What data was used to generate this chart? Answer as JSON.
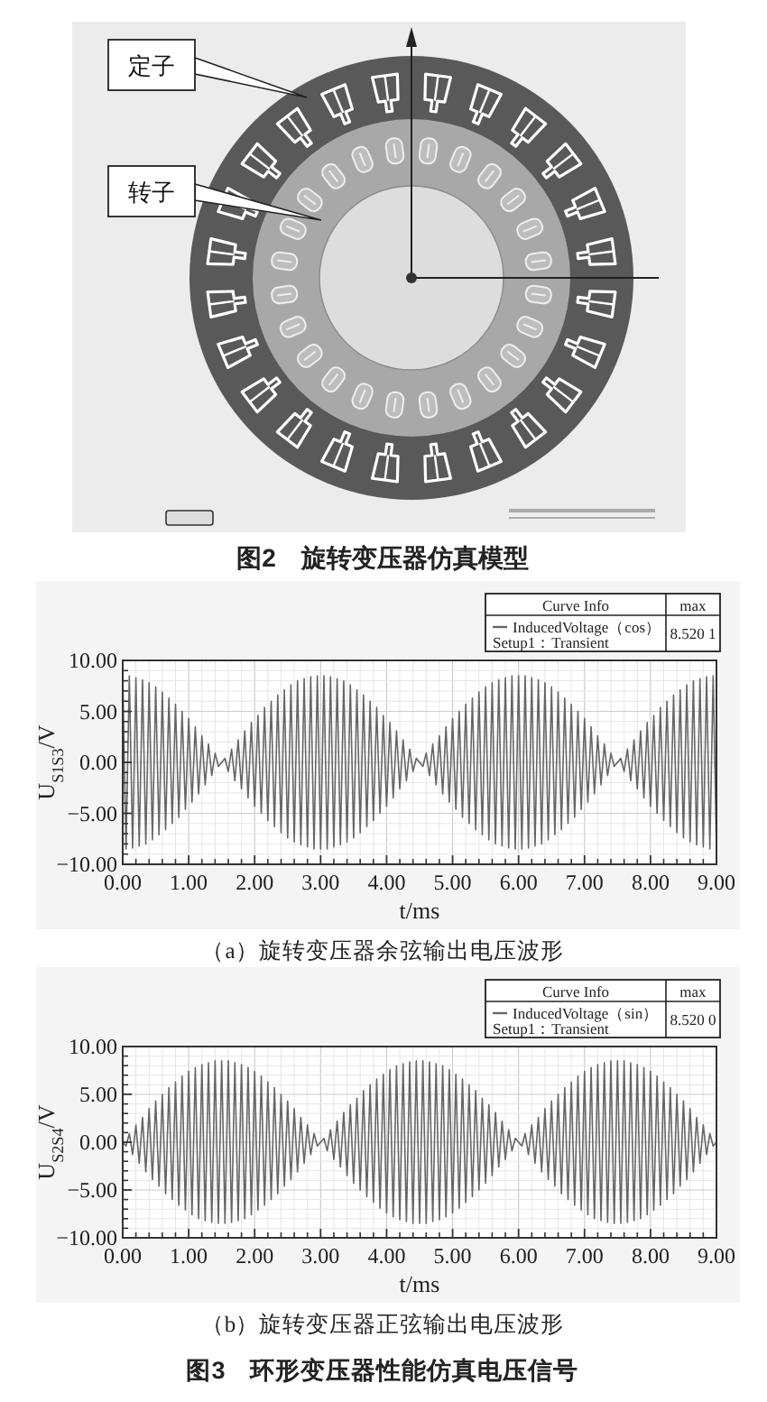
{
  "chart_data": [
    {
      "type": "other",
      "title": "图2　旋转变压器仿真模型",
      "annotations": [
        "定子",
        "转子"
      ]
    },
    {
      "type": "line",
      "title": "（a）旋转变压器余弦输出电压波形",
      "xlabel": "t/ms",
      "ylabel": "U$_{S1S3}$/V",
      "legend_title": "Curve Info",
      "annotations": [
        "Setup1：Transient",
        "max",
        "8.520 1"
      ],
      "x": [
        0,
        0.05,
        0.1,
        0.15,
        0.2,
        0.25,
        0.3,
        0.35,
        0.4,
        0.45,
        0.5,
        0.55,
        0.6,
        0.65,
        0.7,
        0.75,
        0.8,
        0.85,
        0.9,
        0.95,
        1,
        1.05,
        1.1,
        1.15,
        1.2,
        1.25,
        1.3,
        1.35,
        1.4,
        1.45,
        1.5,
        1.55,
        1.6,
        1.65,
        1.7,
        1.75,
        1.8,
        1.85,
        1.9,
        1.95,
        2,
        2.05,
        2.1,
        2.15,
        2.2,
        2.25,
        2.3,
        2.35,
        2.4,
        2.45,
        2.5,
        2.55,
        2.6,
        2.65,
        2.7,
        2.75,
        2.8,
        2.85,
        2.9,
        2.95,
        3,
        3.05,
        3.1,
        3.15,
        3.2,
        3.25,
        3.3,
        3.35,
        3.4,
        3.45,
        3.5,
        3.55,
        3.6,
        3.65,
        3.7,
        3.75,
        3.8,
        3.85,
        3.9,
        3.95,
        4,
        4.05,
        4.1,
        4.15,
        4.2,
        4.25,
        4.3,
        4.35,
        4.4,
        4.45,
        4.5,
        4.55,
        4.6,
        4.65,
        4.7,
        4.75,
        4.8,
        4.85,
        4.9,
        4.95,
        5,
        5.05,
        5.1,
        5.15,
        5.2,
        5.25,
        5.3,
        5.35,
        5.4,
        5.45,
        5.5,
        5.55,
        5.6,
        5.65,
        5.7,
        5.75,
        5.8,
        5.85,
        5.9,
        5.95,
        6,
        6.05,
        6.1,
        6.15,
        6.2,
        6.25,
        6.3,
        6.35,
        6.4,
        6.45,
        6.5,
        6.55,
        6.6,
        6.65,
        6.7,
        6.75,
        6.8,
        6.85,
        6.9,
        6.95,
        7,
        7.05,
        7.1,
        7.15,
        7.2,
        7.25,
        7.3,
        7.35,
        7.4,
        7.45,
        7.5,
        7.55,
        7.6,
        7.65,
        7.7,
        7.75,
        7.8,
        7.85,
        7.9,
        7.95,
        8,
        8.05,
        8.1,
        8.15,
        8.2,
        8.25,
        8.3,
        8.35,
        8.4,
        8.45,
        8.5,
        8.55,
        8.6,
        8.65,
        8.7,
        8.75,
        8.8,
        8.85,
        8.9,
        8.95,
        9
      ],
      "series": [
        {
          "name": "InducedVoltage（cos）",
          "color": "#666666",
          "values": [
            8.5,
            -8.5,
            8.5,
            -8.4,
            8.3,
            -8.2,
            8.1,
            -8.0,
            7.8,
            -7.6,
            7.4,
            -7.1,
            6.9,
            -6.6,
            6.3,
            -6.0,
            5.7,
            -5.4,
            5.0,
            -4.6,
            4.3,
            -3.9,
            3.5,
            -3.1,
            2.6,
            -2.2,
            1.8,
            -1.3,
            0.9,
            -0.4,
            0.0,
            0.4,
            -0.9,
            1.3,
            -1.8,
            2.2,
            -2.6,
            3.1,
            -3.5,
            3.9,
            -4.3,
            4.6,
            -5.0,
            5.4,
            -5.7,
            6.0,
            -6.3,
            6.6,
            -6.9,
            7.1,
            -7.4,
            7.6,
            -7.8,
            8.0,
            -8.1,
            8.2,
            -8.3,
            8.4,
            -8.5,
            8.5,
            -8.5,
            8.5,
            -8.5,
            8.4,
            -8.3,
            8.2,
            -8.1,
            8.0,
            -7.8,
            7.6,
            -7.4,
            7.1,
            -6.9,
            6.6,
            -6.3,
            6.0,
            -5.7,
            5.4,
            -5.0,
            4.6,
            -4.3,
            3.9,
            -3.5,
            3.1,
            -2.6,
            2.2,
            -1.8,
            1.3,
            -0.9,
            0.4,
            0.0,
            -0.4,
            0.9,
            -1.3,
            1.8,
            -2.2,
            2.6,
            -3.1,
            3.5,
            -3.9,
            4.3,
            -4.6,
            5.0,
            -5.4,
            5.7,
            -6.0,
            6.3,
            -6.6,
            6.9,
            -7.1,
            7.4,
            -7.6,
            7.8,
            -8.0,
            8.1,
            -8.2,
            8.3,
            -8.4,
            8.5,
            -8.5,
            8.5,
            -8.5,
            8.5,
            -8.4,
            8.3,
            -8.2,
            8.1,
            -8.0,
            7.8,
            -7.6,
            7.4,
            -7.1,
            6.9,
            -6.6,
            6.3,
            -6.0,
            5.7,
            -5.4,
            5.0,
            -4.6,
            4.3,
            -3.9,
            3.5,
            -3.1,
            2.6,
            -2.2,
            1.8,
            -1.3,
            0.9,
            -0.4,
            0.0,
            0.4,
            -0.9,
            1.3,
            -1.8,
            2.2,
            -2.6,
            3.1,
            -3.5,
            3.9,
            -4.3,
            4.6,
            -5.0,
            5.4,
            -5.7,
            6.0,
            -6.3,
            6.6,
            -6.9,
            7.1,
            -7.4,
            7.6,
            -7.8,
            8.0,
            -8.1,
            8.2,
            -8.3,
            8.4,
            -8.5,
            8.5,
            -8.5
          ]
        }
      ],
      "xlim": [
        0,
        9
      ],
      "xticks": [
        {
          "value": 0,
          "label": "0.00"
        },
        {
          "value": 1,
          "label": "1.00"
        },
        {
          "value": 2,
          "label": "2.00"
        },
        {
          "value": 3,
          "label": "3.00"
        },
        {
          "value": 4,
          "label": "4.00"
        },
        {
          "value": 5,
          "label": "5.00"
        },
        {
          "value": 6,
          "label": "6.00"
        },
        {
          "value": 7,
          "label": "7.00"
        },
        {
          "value": 8,
          "label": "8.00"
        },
        {
          "value": 9,
          "label": "9.00"
        }
      ],
      "ylim": [
        -10,
        10
      ],
      "yticks": [
        {
          "value": -10,
          "label": "−10.00"
        },
        {
          "value": -5,
          "label": "−5.00"
        },
        {
          "value": 0,
          "label": "0.00"
        },
        {
          "value": 5,
          "label": "5.00"
        },
        {
          "value": 10,
          "label": "10.00"
        }
      ],
      "grid": true,
      "legend": "top right"
    },
    {
      "type": "line",
      "title": "（b）旋转变压器正弦输出电压波形",
      "xlabel": "t/ms",
      "ylabel": "U$_{S2S4}$/V",
      "legend_title": "Curve Info",
      "annotations": [
        "Setup1：Transient",
        "max",
        "8.520 0",
        "图3　环形变压器性能仿真电压信号"
      ],
      "x": [
        0,
        0.05,
        0.1,
        0.15,
        0.2,
        0.25,
        0.3,
        0.35,
        0.4,
        0.45,
        0.5,
        0.55,
        0.6,
        0.65,
        0.7,
        0.75,
        0.8,
        0.85,
        0.9,
        0.95,
        1,
        1.05,
        1.1,
        1.15,
        1.2,
        1.25,
        1.3,
        1.35,
        1.4,
        1.45,
        1.5,
        1.55,
        1.6,
        1.65,
        1.7,
        1.75,
        1.8,
        1.85,
        1.9,
        1.95,
        2,
        2.05,
        2.1,
        2.15,
        2.2,
        2.25,
        2.3,
        2.35,
        2.4,
        2.45,
        2.5,
        2.55,
        2.6,
        2.65,
        2.7,
        2.75,
        2.8,
        2.85,
        2.9,
        2.95,
        3,
        3.05,
        3.1,
        3.15,
        3.2,
        3.25,
        3.3,
        3.35,
        3.4,
        3.45,
        3.5,
        3.55,
        3.6,
        3.65,
        3.7,
        3.75,
        3.8,
        3.85,
        3.9,
        3.95,
        4,
        4.05,
        4.1,
        4.15,
        4.2,
        4.25,
        4.3,
        4.35,
        4.4,
        4.45,
        4.5,
        4.55,
        4.6,
        4.65,
        4.7,
        4.75,
        4.8,
        4.85,
        4.9,
        4.95,
        5,
        5.05,
        5.1,
        5.15,
        5.2,
        5.25,
        5.3,
        5.35,
        5.4,
        5.45,
        5.5,
        5.55,
        5.6,
        5.65,
        5.7,
        5.75,
        5.8,
        5.85,
        5.9,
        5.95,
        6,
        6.05,
        6.1,
        6.15,
        6.2,
        6.25,
        6.3,
        6.35,
        6.4,
        6.45,
        6.5,
        6.55,
        6.6,
        6.65,
        6.7,
        6.75,
        6.8,
        6.85,
        6.9,
        6.95,
        7,
        7.05,
        7.1,
        7.15,
        7.2,
        7.25,
        7.3,
        7.35,
        7.4,
        7.45,
        7.5,
        7.55,
        7.6,
        7.65,
        7.7,
        7.75,
        7.8,
        7.85,
        7.9,
        7.95,
        8,
        8.05,
        8.1,
        8.15,
        8.2,
        8.25,
        8.3,
        8.35,
        8.4,
        8.45,
        8.5,
        8.55,
        8.6,
        8.65,
        8.7,
        8.75,
        8.8,
        8.85,
        8.9,
        8.95,
        9
      ],
      "series": [
        {
          "name": "InducedVoltage（sin）",
          "color": "#666666",
          "values": [
            0.0,
            -0.4,
            0.9,
            -1.3,
            1.8,
            -2.2,
            2.6,
            -3.1,
            3.5,
            -3.9,
            4.3,
            -4.6,
            5.0,
            -5.4,
            5.7,
            -6.0,
            6.3,
            -6.6,
            6.9,
            -7.1,
            7.4,
            -7.6,
            7.8,
            -8.0,
            8.1,
            -8.2,
            8.3,
            -8.4,
            8.5,
            -8.5,
            8.5,
            -8.5,
            8.5,
            -8.4,
            8.3,
            -8.2,
            8.1,
            -8.0,
            7.8,
            -7.6,
            7.4,
            -7.1,
            6.9,
            -6.6,
            6.3,
            -6.0,
            5.7,
            -5.4,
            5.0,
            -4.6,
            4.3,
            -3.9,
            3.5,
            -3.1,
            2.6,
            -2.2,
            1.8,
            -1.3,
            0.9,
            -0.4,
            0.0,
            0.4,
            -0.9,
            1.3,
            -1.8,
            2.2,
            -2.6,
            3.1,
            -3.5,
            3.9,
            -4.3,
            4.6,
            -5.0,
            5.4,
            -5.7,
            6.0,
            -6.3,
            6.6,
            -6.9,
            7.1,
            -7.4,
            7.6,
            -7.8,
            8.0,
            -8.1,
            8.2,
            -8.3,
            8.4,
            -8.5,
            8.5,
            -8.5,
            8.5,
            -8.5,
            8.4,
            -8.3,
            8.2,
            -8.1,
            8.0,
            -7.8,
            7.6,
            -7.4,
            7.1,
            -6.9,
            6.6,
            -6.3,
            6.0,
            -5.7,
            5.4,
            -5.0,
            4.6,
            -4.3,
            3.9,
            -3.5,
            3.1,
            -2.6,
            2.2,
            -1.8,
            1.3,
            -0.9,
            0.4,
            0.0,
            -0.4,
            0.9,
            -1.3,
            1.8,
            -2.2,
            2.6,
            -3.1,
            3.5,
            -3.9,
            4.3,
            -4.6,
            5.0,
            -5.4,
            5.7,
            -6.0,
            6.3,
            -6.6,
            6.9,
            -7.1,
            7.4,
            -7.6,
            7.8,
            -8.0,
            8.1,
            -8.2,
            8.3,
            -8.4,
            8.5,
            -8.5,
            8.5,
            -8.5,
            8.5,
            -8.4,
            8.3,
            -8.2,
            8.1,
            -8.0,
            7.8,
            -7.6,
            7.4,
            -7.1,
            6.9,
            -6.6,
            6.3,
            -6.0,
            5.7,
            -5.4,
            5.0,
            -4.6,
            4.3,
            -3.9,
            3.5,
            -3.1,
            2.6,
            -2.2,
            1.8,
            -1.3,
            0.9,
            -0.4,
            0.0
          ]
        }
      ],
      "xlim": [
        0,
        9
      ],
      "xticks": [
        {
          "value": 0,
          "label": "0.00"
        },
        {
          "value": 1,
          "label": "1.00"
        },
        {
          "value": 2,
          "label": "2.00"
        },
        {
          "value": 3,
          "label": "3.00"
        },
        {
          "value": 4,
          "label": "4.00"
        },
        {
          "value": 5,
          "label": "5.00"
        },
        {
          "value": 6,
          "label": "6.00"
        },
        {
          "value": 7,
          "label": "7.00"
        },
        {
          "value": 8,
          "label": "8.00"
        },
        {
          "value": 9,
          "label": "9.00"
        }
      ],
      "ylim": [
        -10,
        10
      ],
      "yticks": [
        {
          "value": -10,
          "label": "−10.00"
        },
        {
          "value": -5,
          "label": "−5.00"
        },
        {
          "value": 0,
          "label": "0.00"
        },
        {
          "value": 5,
          "label": "5.00"
        },
        {
          "value": 10,
          "label": "10.00"
        }
      ],
      "grid": true,
      "legend": "top right"
    }
  ]
}
